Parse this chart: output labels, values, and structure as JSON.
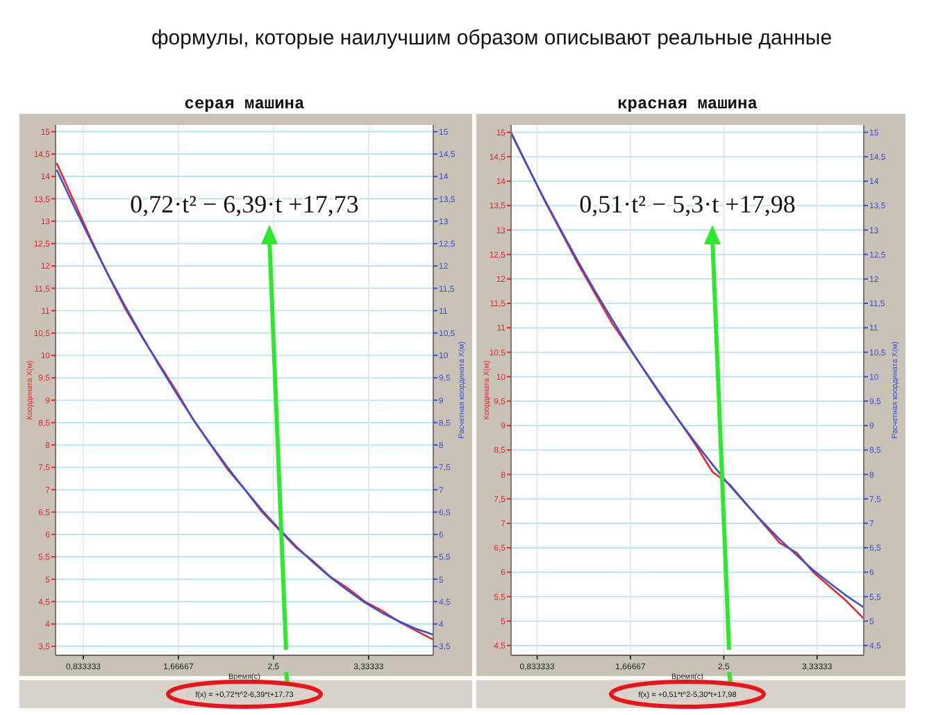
{
  "chart_data": [
    {
      "type": "line",
      "title": "формулы, которые наилучшим образом описывают реальные данные",
      "subtitle": "серая машина",
      "xlabel": "Время(с)",
      "ylabel": "Координата X(м)",
      "y2label": "Расчетная координата X(м)",
      "grid": true,
      "marker": "none",
      "xlim": [
        0.59,
        3.9
      ],
      "xticks": [
        {
          "value": 0.833333,
          "label": "0,833333"
        },
        {
          "value": 1.66667,
          "label": "1,66667"
        },
        {
          "value": 2.5,
          "label": "2,5"
        },
        {
          "value": 3.33333,
          "label": "3,33333"
        }
      ],
      "ylim": [
        3.3,
        15.15
      ],
      "yticks": [
        {
          "value": 3.5,
          "label": "3,5"
        },
        4,
        {
          "value": 4.5,
          "label": "4,5"
        },
        5,
        {
          "value": 5.5,
          "label": "5,5"
        },
        6,
        {
          "value": 6.5,
          "label": "6,5"
        },
        7,
        {
          "value": 7.5,
          "label": "7,5"
        },
        8,
        {
          "value": 8.5,
          "label": "8,5"
        },
        9,
        {
          "value": 9.5,
          "label": "9,5"
        },
        10,
        {
          "value": 10.5,
          "label": "10,5"
        },
        11,
        {
          "value": 11.5,
          "label": "11,5"
        },
        12,
        {
          "value": 12.5,
          "label": "12,5"
        },
        13,
        {
          "value": 13.5,
          "label": "13,5"
        },
        14,
        {
          "value": 14.5,
          "label": "14,5"
        },
        15
      ],
      "y2lim": [
        3.3,
        15.15
      ],
      "y2ticks": [
        {
          "value": 3.5,
          "label": "3,5"
        },
        4,
        {
          "value": 4.5,
          "label": "4,5"
        },
        5,
        {
          "value": 5.5,
          "label": "5,5"
        },
        6,
        {
          "value": 6.5,
          "label": "6,5"
        },
        7,
        {
          "value": 7.5,
          "label": "7,5"
        },
        8,
        {
          "value": 8.5,
          "label": "8,5"
        },
        9,
        {
          "value": 9.5,
          "label": "9,5"
        },
        10,
        {
          "value": 10.5,
          "label": "10,5"
        },
        11,
        {
          "value": 11.5,
          "label": "11,5"
        },
        12,
        {
          "value": 12.5,
          "label": "12,5"
        },
        13,
        {
          "value": 13.5,
          "label": "13,5"
        },
        14,
        {
          "value": 14.5,
          "label": "14,5"
        },
        15
      ],
      "x": [
        0.6,
        0.75,
        0.9,
        1.05,
        1.2,
        1.35,
        1.5,
        1.65,
        1.8,
        1.95,
        2.1,
        2.25,
        2.4,
        2.55,
        2.7,
        2.85,
        3.0,
        3.15,
        3.3,
        3.45,
        3.6,
        3.75,
        3.9
      ],
      "series": [
        {
          "color": "#e8262a",
          "values": [
            14.3,
            13.45,
            12.6,
            11.8,
            11.05,
            10.4,
            9.8,
            9.2,
            8.55,
            8.0,
            7.45,
            7.0,
            6.5,
            6.1,
            5.7,
            5.4,
            5.05,
            4.8,
            4.5,
            4.3,
            4.05,
            3.85,
            3.65
          ]
        },
        {
          "color": "#3a4fd8",
          "values": [
            14.15,
            13.34,
            12.56,
            11.81,
            11.1,
            10.42,
            9.77,
            9.15,
            8.56,
            8.01,
            7.49,
            7.0,
            6.54,
            6.12,
            5.73,
            5.37,
            5.04,
            4.75,
            4.48,
            4.25,
            4.06,
            3.89,
            3.76
          ]
        }
      ],
      "annotations": [
        "0,72·t² − 6,39·t +17,73",
        "f(x) = +0,72*t^2-6,39*t+17,73"
      ]
    },
    {
      "type": "line",
      "subtitle": "красная машина",
      "xlabel": "Время(с)",
      "ylabel": "Координата X(м)",
      "y2label": "Расчетная координата X(м)",
      "grid": true,
      "marker": "none",
      "xlim": [
        0.6,
        3.75
      ],
      "xticks": [
        {
          "value": 0.833333,
          "label": "0,833333"
        },
        {
          "value": 1.66667,
          "label": "1,66667"
        },
        {
          "value": 2.5,
          "label": "2,5"
        },
        {
          "value": 3.33333,
          "label": "3,33333"
        }
      ],
      "ylim": [
        4.3,
        15.15
      ],
      "yticks": [
        {
          "value": 4.5,
          "label": "4,5"
        },
        5,
        {
          "value": 5.5,
          "label": "5,5"
        },
        6,
        {
          "value": 6.5,
          "label": "6,5"
        },
        7,
        {
          "value": 7.5,
          "label": "7,5"
        },
        8,
        {
          "value": 8.5,
          "label": "8,5"
        },
        9,
        {
          "value": 9.5,
          "label": "9,5"
        },
        10,
        {
          "value": 10.5,
          "label": "10,5"
        },
        11,
        {
          "value": 11.5,
          "label": "11,5"
        },
        12,
        {
          "value": 12.5,
          "label": "12,5"
        },
        13,
        {
          "value": 13.5,
          "label": "13,5"
        },
        14,
        {
          "value": 14.5,
          "label": "14,5"
        },
        15
      ],
      "y2lim": [
        4.3,
        15.15
      ],
      "y2ticks": [
        {
          "value": 4.5,
          "label": "4,5"
        },
        5,
        {
          "value": 5.5,
          "label": "5,5"
        },
        6,
        {
          "value": 6.5,
          "label": "6,5"
        },
        7,
        {
          "value": 7.5,
          "label": "7,5"
        },
        8,
        {
          "value": 8.5,
          "label": "8,5"
        },
        9,
        {
          "value": 9.5,
          "label": "9,5"
        },
        10,
        {
          "value": 10.5,
          "label": "10,5"
        },
        11,
        {
          "value": 11.5,
          "label": "11,5"
        },
        12,
        {
          "value": 12.5,
          "label": "12,5"
        },
        13,
        {
          "value": 13.5,
          "label": "13,5"
        },
        14,
        {
          "value": 14.5,
          "label": "14,5"
        },
        15
      ],
      "x": [
        0.6,
        0.75,
        0.9,
        1.05,
        1.2,
        1.35,
        1.5,
        1.65,
        1.8,
        1.95,
        2.1,
        2.25,
        2.4,
        2.55,
        2.7,
        2.85,
        3.0,
        3.15,
        3.3,
        3.45,
        3.6,
        3.75
      ],
      "series": [
        {
          "color": "#e8262a",
          "values": [
            15.0,
            14.3,
            13.6,
            12.95,
            12.3,
            11.7,
            11.1,
            10.6,
            10.1,
            9.6,
            9.1,
            8.6,
            8.05,
            7.8,
            7.4,
            7.0,
            6.6,
            6.4,
            6.0,
            5.7,
            5.4,
            5.05
          ]
        },
        {
          "color": "#3a4fd8",
          "values": [
            14.98,
            14.29,
            13.62,
            12.98,
            12.35,
            11.75,
            11.18,
            10.62,
            10.09,
            9.58,
            9.1,
            8.64,
            8.2,
            7.78,
            7.39,
            7.02,
            6.67,
            6.35,
            6.04,
            5.77,
            5.51,
            5.28
          ]
        }
      ],
      "annotations": [
        "0,51·t² − 5,3·t +17,98",
        "f(x) = +0,51*t^2-5,30*t+17,98"
      ]
    }
  ]
}
